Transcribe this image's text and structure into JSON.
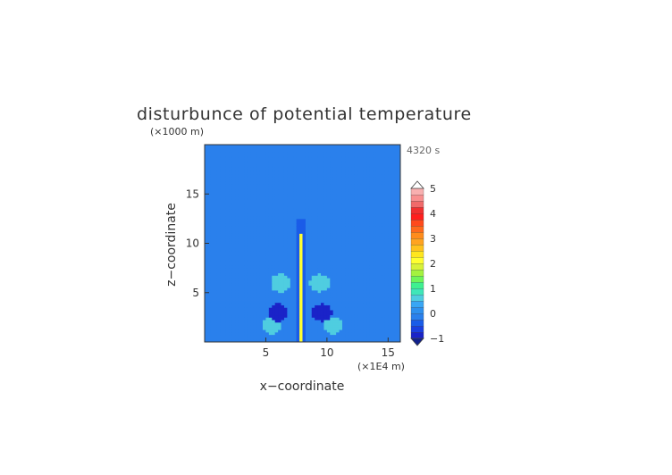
{
  "chart_data": {
    "type": "heatmap",
    "title": "disturbunce of potential temperature",
    "xlabel": "x−coordinate",
    "ylabel": "z−coordinate",
    "x_unit": "(×1E4 m)",
    "y_unit": "(×1000 m)",
    "time_label": "4320 s",
    "xlim": [
      0,
      16
    ],
    "ylim": [
      0,
      20
    ],
    "x_ticks": [
      5,
      10,
      15
    ],
    "y_ticks": [
      5,
      10,
      15
    ],
    "colorbar": {
      "min": -1,
      "max": 5,
      "step": 0.25,
      "tick_labels": [
        "5",
        "4",
        "3",
        "2",
        "1",
        "0",
        "−1"
      ],
      "colors": [
        "#1a23c8",
        "#1a3fe0",
        "#1a5ce8",
        "#2a80ec",
        "#2e90ee",
        "#39a6f5",
        "#4fcde0",
        "#3fe6b8",
        "#3ff090",
        "#6ff55a",
        "#a4f23f",
        "#d8f238",
        "#ffff30",
        "#ffe61e",
        "#ffc21e",
        "#ffa320",
        "#ff8c1c",
        "#ff6a1c",
        "#ff4a1c",
        "#ff1e1e",
        "#f03030",
        "#f06a6a",
        "#f89090",
        "#f8b0b0"
      ]
    },
    "field_features": [
      {
        "kind": "background",
        "value": -0.15
      },
      {
        "kind": "slab",
        "value": 0.0,
        "z_range": [
          0,
          9.5
        ]
      },
      {
        "kind": "slab",
        "value": 0.0,
        "z_range": [
          15.5,
          20
        ]
      },
      {
        "kind": "plume",
        "value": 2.0,
        "x": 7.9,
        "z_range": [
          0,
          11
        ]
      },
      {
        "kind": "blob",
        "value": 0.7,
        "x": 5.5,
        "z": 1.7
      },
      {
        "kind": "blob",
        "value": 0.7,
        "x": 10.5,
        "z": 1.7
      },
      {
        "kind": "blob",
        "value": -0.8,
        "x": 6.0,
        "z": 3.0
      },
      {
        "kind": "blob",
        "value": -0.8,
        "x": 9.6,
        "z": 3.0
      },
      {
        "kind": "blob",
        "value": 0.6,
        "x": 6.2,
        "z": 6.0
      },
      {
        "kind": "blob",
        "value": 0.6,
        "x": 9.4,
        "z": 6.0
      }
    ]
  }
}
